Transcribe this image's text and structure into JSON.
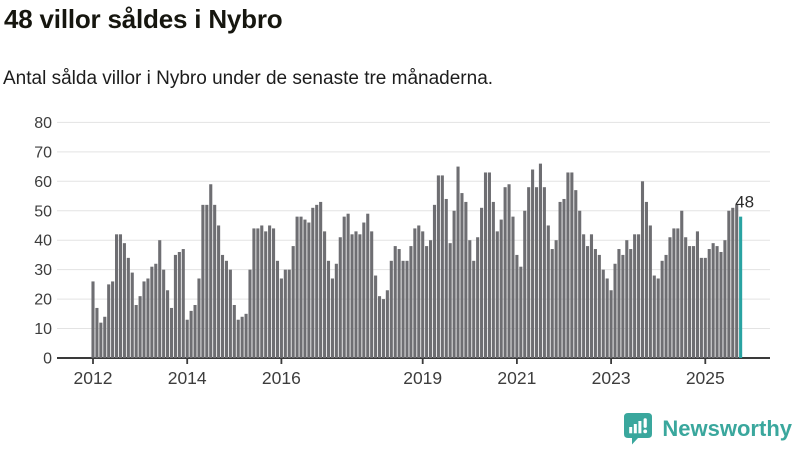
{
  "header": {
    "title": "48 villor såldes i Nybro",
    "subtitle": "Antal sålda villor i Nybro under de senaste tre månaderna."
  },
  "logo": {
    "text": "Newsworthy"
  },
  "colors": {
    "background": "#ffffff",
    "bar": "#6e6e72",
    "bar_highlight": "#29a3a2",
    "grid": "#e3e3e3",
    "axis": "#3a3a3a",
    "axis_text": "#3d3d3d",
    "annotation_text": "#2b2b2b",
    "logo_teal": "#3aa79d"
  },
  "chart_data": {
    "type": "bar",
    "title": "48 villor såldes i Nybro",
    "subtitle": "Antal sålda villor i Nybro under de senaste tre månaderna.",
    "x_start_month": "2012-01",
    "x_end_month": "2025-10",
    "x_tick_years": [
      2012,
      2014,
      2016,
      2019,
      2021,
      2023,
      2025
    ],
    "ylim": [
      0,
      80
    ],
    "yticks": [
      0,
      10,
      20,
      30,
      40,
      50,
      60,
      70,
      80
    ],
    "grid": "horizontal",
    "legend": "none",
    "highlight_last_bar": true,
    "highlight_label": "48",
    "values": [
      26,
      17,
      12,
      14,
      25,
      26,
      42,
      42,
      39,
      34,
      29,
      18,
      21,
      26,
      27,
      31,
      32,
      40,
      30,
      23,
      17,
      35,
      36,
      37,
      13,
      16,
      18,
      27,
      52,
      52,
      59,
      52,
      45,
      35,
      33,
      30,
      18,
      13,
      14,
      15,
      30,
      44,
      44,
      45,
      43,
      45,
      44,
      33,
      27,
      30,
      30,
      38,
      48,
      48,
      47,
      46,
      51,
      52,
      53,
      43,
      33,
      27,
      32,
      41,
      48,
      49,
      42,
      43,
      42,
      46,
      49,
      43,
      28,
      21,
      20,
      23,
      33,
      38,
      37,
      33,
      33,
      38,
      44,
      45,
      43,
      38,
      40,
      52,
      62,
      62,
      54,
      39,
      50,
      65,
      56,
      53,
      40,
      33,
      41,
      51,
      63,
      63,
      53,
      43,
      47,
      58,
      59,
      48,
      35,
      31,
      50,
      58,
      64,
      58,
      66,
      58,
      45,
      37,
      40,
      53,
      54,
      63,
      63,
      57,
      50,
      42,
      38,
      42,
      37,
      35,
      30,
      27,
      23,
      32,
      37,
      35,
      40,
      37,
      42,
      42,
      60,
      53,
      45,
      28,
      27,
      33,
      35,
      41,
      44,
      44,
      50,
      41,
      38,
      38,
      43,
      34,
      34,
      37,
      39,
      38,
      36,
      40,
      50,
      51,
      52,
      48
    ]
  }
}
